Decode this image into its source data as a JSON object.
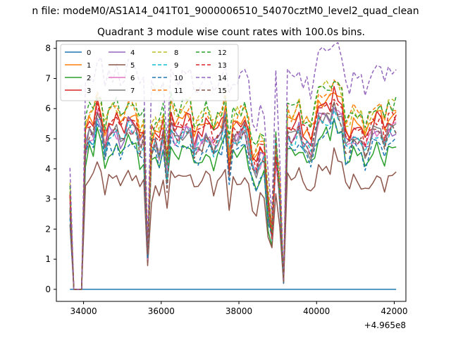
{
  "chart_data": {
    "type": "line",
    "suptitle": "n file: modeM0/AS1A14_041T01_9000006510_54070cztM0_level2_quad_clean",
    "title": "Quadrant 3 module wise count rates with 100.0s bins.",
    "xlabel": "",
    "ylabel": "",
    "x_offset_label": "+4.965e8",
    "xlim": [
      33300,
      42300
    ],
    "ylim": [
      -0.4,
      8.25
    ],
    "x_ticks": [
      34000,
      36000,
      38000,
      40000,
      42000
    ],
    "x_tick_labels": [
      "34000",
      "36000",
      "38000",
      "40000",
      "42000"
    ],
    "y_ticks": [
      0,
      1,
      2,
      3,
      4,
      5,
      6,
      7,
      8
    ],
    "y_tick_labels": [
      "0",
      "1",
      "2",
      "3",
      "4",
      "5",
      "6",
      "7",
      "8"
    ],
    "grid": false,
    "legend_position": "top-left",
    "legend_columns": 4,
    "x_start": 33650,
    "x_step": 100,
    "x_count": 85,
    "events": [
      {
        "x": 33650,
        "f": 0.86
      },
      {
        "x": 33750,
        "f": 0.0
      },
      {
        "x": 33850,
        "f": 0.0
      },
      {
        "x": 33950,
        "f": 0.0
      },
      {
        "x": 35650,
        "f": 0.22
      },
      {
        "x": 35750,
        "f": 0.88
      },
      {
        "x": 36150,
        "f": 0.7
      },
      {
        "x": 37750,
        "f": 0.8
      },
      {
        "x": 38750,
        "f": 0.52
      },
      {
        "x": 38850,
        "f": 0.38
      },
      {
        "x": 38950,
        "f": 0.95
      },
      {
        "x": 39050,
        "f": 0.55
      },
      {
        "x": 39150,
        "f": 0.05
      }
    ],
    "series": [
      {
        "name": "0",
        "color": "#1f77b4",
        "dash": "",
        "constant": 0,
        "level": 0
      },
      {
        "name": "1",
        "color": "#ff7f0e",
        "dash": "",
        "level": 5.5,
        "amp": 0.45
      },
      {
        "name": "2",
        "color": "#2ca02c",
        "dash": "",
        "level": 4.5,
        "amp": 0.45
      },
      {
        "name": "3",
        "color": "#d62728",
        "dash": "",
        "level": 5.4,
        "amp": 0.45
      },
      {
        "name": "4",
        "color": "#9467bd",
        "dash": "",
        "level": 5.1,
        "amp": 0.45
      },
      {
        "name": "5",
        "color": "#8c564b",
        "dash": "",
        "level": 3.6,
        "amp": 0.4
      },
      {
        "name": "6",
        "color": "#e377c2",
        "dash": "",
        "level": 5.0,
        "amp": 0.45
      },
      {
        "name": "7",
        "color": "#7f7f7f",
        "dash": "",
        "level": 5.0,
        "amp": 0.45
      },
      {
        "name": "8",
        "color": "#bcbd22",
        "dash": "5,3",
        "level": 5.9,
        "amp": 0.45
      },
      {
        "name": "9",
        "color": "#17becf",
        "dash": "5,3",
        "level": 5.0,
        "amp": 0.45
      },
      {
        "name": "10",
        "color": "#1f77b4",
        "dash": "5,3",
        "level": 4.6,
        "amp": 0.45
      },
      {
        "name": "11",
        "color": "#ff7f0e",
        "dash": "5,3",
        "level": 5.8,
        "amp": 0.45
      },
      {
        "name": "12",
        "color": "#2ca02c",
        "dash": "5,3",
        "level": 5.9,
        "amp": 0.45
      },
      {
        "name": "13",
        "color": "#d62728",
        "dash": "5,3",
        "level": 5.4,
        "amp": 0.45
      },
      {
        "name": "14",
        "color": "#9467bd",
        "dash": "5,3",
        "level": 7.0,
        "amp": 0.45
      },
      {
        "name": "15",
        "color": "#8c564b",
        "dash": "5,3",
        "level": 5.0,
        "amp": 0.45
      }
    ]
  }
}
